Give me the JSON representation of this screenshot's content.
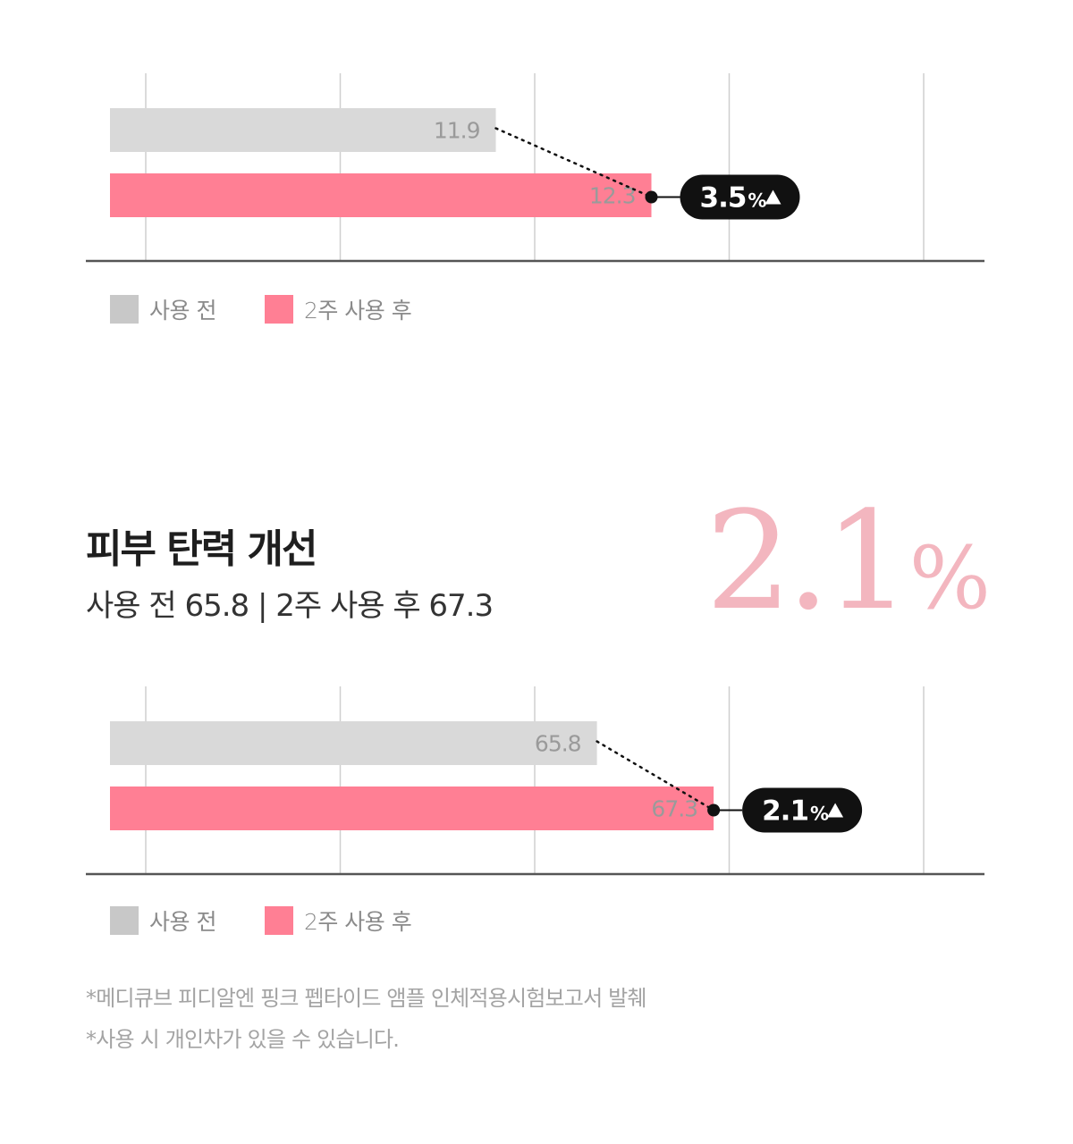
{
  "legend": {
    "before_label": "사용 전",
    "after_label": "2주 사용 후",
    "before_color": "#d9d9d9",
    "after_color": "#ff7f94"
  },
  "section": {
    "title": "피부 탄력 개선",
    "subtitle": "사용 전 65.8 | 2주 사용 후 67.3",
    "big_percent_value": "2.1",
    "big_percent_unit": "%"
  },
  "footnotes": [
    "*메디큐브 피디알엔 핑크 펩타이드 앰플 인체적용시험보고서 발췌",
    "*사용 시 개인차가 있을 수 있습니다."
  ],
  "chart_data": [
    {
      "type": "bar",
      "orientation": "horizontal",
      "series": [
        {
          "name": "사용 전",
          "value": 11.9,
          "label": "11.9"
        },
        {
          "name": "2주 사용 후",
          "value": 12.3,
          "label": "12.3"
        }
      ],
      "xlim": [
        11.0,
        13.0
      ],
      "change_label": "3.5",
      "change_unit": "%",
      "change_icon": "triangle-up-icon",
      "grid": true
    },
    {
      "type": "bar",
      "orientation": "horizontal",
      "series": [
        {
          "name": "사용 전",
          "value": 65.8,
          "label": "65.8"
        },
        {
          "name": "2주 사용 후",
          "value": 67.3,
          "label": "67.3"
        }
      ],
      "xlim": [
        60.0,
        70.0
      ],
      "change_label": "2.1",
      "change_unit": "%",
      "change_icon": "triangle-up-icon",
      "grid": true
    }
  ]
}
